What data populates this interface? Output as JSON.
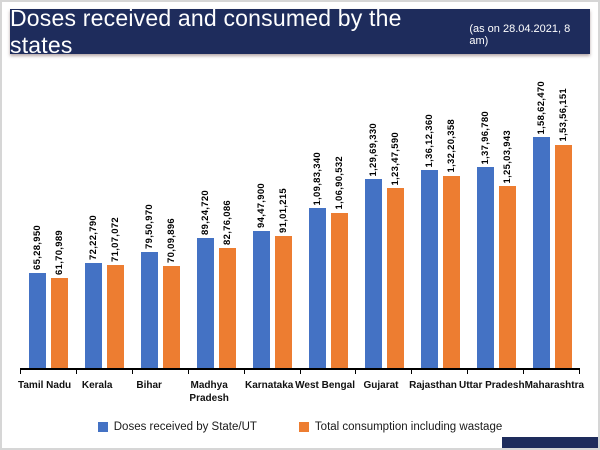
{
  "title": {
    "main": "Doses received and consumed by the states",
    "suffix": "(as on 28.04.2021, 8 am)"
  },
  "colors": {
    "banner_navy": "#1e2c5c",
    "received_blue": "#4472c4",
    "consumed_orange": "#ed7d31"
  },
  "legend": [
    {
      "label": "Doses received by State/UT",
      "color": "#4472c4"
    },
    {
      "label": "Total consumption including wastage",
      "color": "#ed7d31"
    }
  ],
  "chart_data": {
    "type": "bar",
    "title": "Doses received and consumed by the states (as on 28.04.2021, 8 am)",
    "categories": [
      "Tamil Nadu",
      "Kerala",
      "Bihar",
      "Madhya Pradesh",
      "Karnataka",
      "West Bengal",
      "Gujarat",
      "Rajasthan",
      "Uttar Pradesh",
      "Maharashtra"
    ],
    "series": [
      {
        "name": "Doses received by State/UT",
        "color": "#4472c4",
        "values": [
          6528950,
          7222790,
          7950970,
          8924720,
          9447900,
          10983340,
          12969330,
          13612360,
          13796780,
          15862470
        ],
        "labels": [
          "65,28,950",
          "72,22,790",
          "79,50,970",
          "89,24,720",
          "94,47,900",
          "1,09,83,340",
          "1,29,69,330",
          "1,36,12,360",
          "1,37,96,780",
          "1,58,62,470"
        ]
      },
      {
        "name": "Total consumption including wastage",
        "color": "#ed7d31",
        "values": [
          6170989,
          7107072,
          7009896,
          8276086,
          9101215,
          10690532,
          12347590,
          13220358,
          12503943,
          15356151
        ],
        "labels": [
          "61,70,989",
          "71,07,072",
          "70,09,896",
          "82,76,086",
          "91,01,215",
          "1,06,90,532",
          "1,23,47,590",
          "1,32,20,358",
          "1,25,03,943",
          "1,53,56,151"
        ]
      }
    ],
    "xlabel": "",
    "ylabel": "",
    "ylim": [
      0,
      16500000
    ],
    "grid": false,
    "legend_position": "bottom",
    "value_labels": "rotated-90-above-bars"
  }
}
